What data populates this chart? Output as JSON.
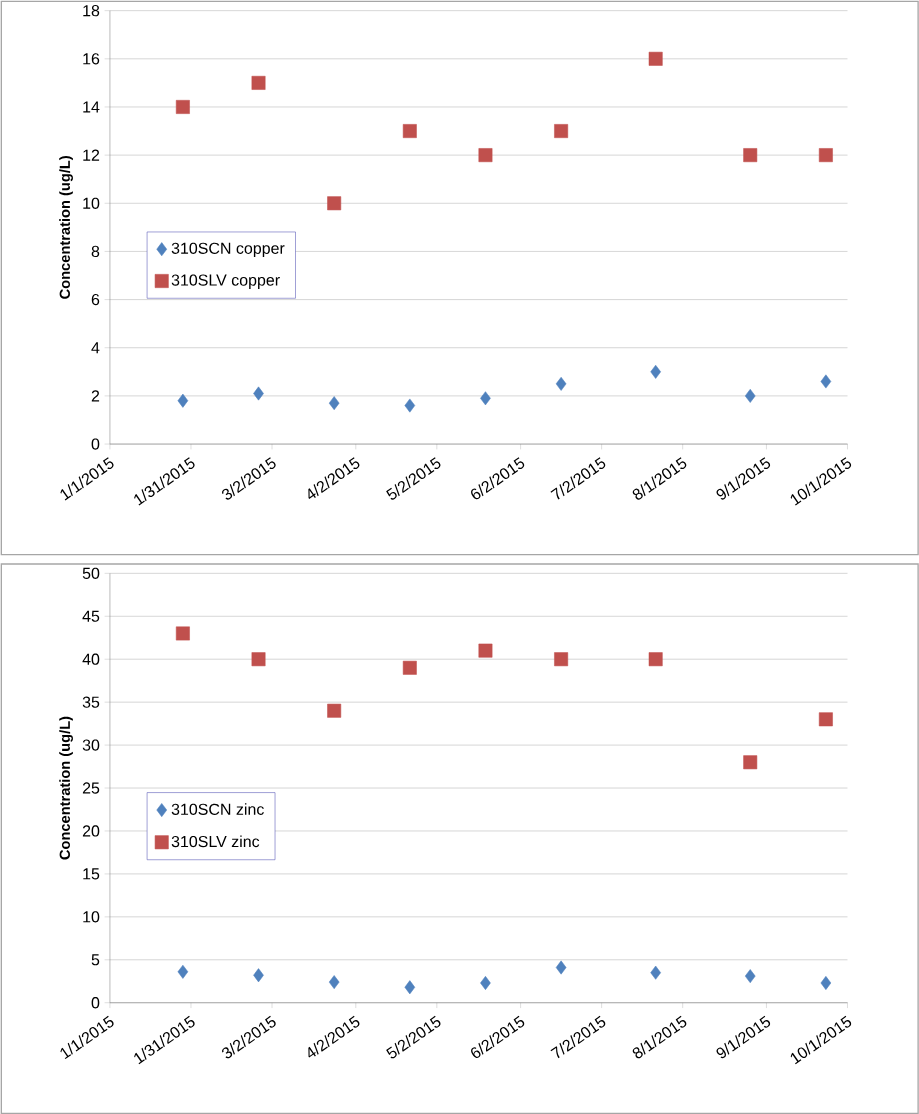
{
  "chart_data": [
    {
      "type": "scatter",
      "ylabel": "Concentration (ug/L)",
      "legend": "left",
      "grid": "y",
      "xlim": [
        "2015-01-01",
        "2015-10-01"
      ],
      "xticks": [
        {
          "value": "2015-01-01",
          "label": "1/1/2015"
        },
        {
          "value": "2015-01-31",
          "label": "1/31/2015"
        },
        {
          "value": "2015-03-02",
          "label": "3/2/2015"
        },
        {
          "value": "2015-04-02",
          "label": "4/2/2015"
        },
        {
          "value": "2015-05-02",
          "label": "5/2/2015"
        },
        {
          "value": "2015-06-02",
          "label": "6/2/2015"
        },
        {
          "value": "2015-07-02",
          "label": "7/2/2015"
        },
        {
          "value": "2015-08-01",
          "label": "8/1/2015"
        },
        {
          "value": "2015-09-01",
          "label": "9/1/2015"
        },
        {
          "value": "2015-10-01",
          "label": "10/1/2015"
        }
      ],
      "ylim": [
        0,
        18
      ],
      "yticks": [
        0,
        2,
        4,
        6,
        8,
        10,
        12,
        14,
        16,
        18
      ],
      "x": [
        "2015-01-28",
        "2015-02-25",
        "2015-03-25",
        "2015-04-22",
        "2015-05-20",
        "2015-06-17",
        "2015-07-22",
        "2015-08-26",
        "2015-09-23"
      ],
      "series": [
        {
          "name": "310SCN copper",
          "color": "#4f81bd",
          "marker": "diamond",
          "values": [
            1.8,
            2.1,
            1.7,
            1.6,
            1.9,
            2.5,
            3.0,
            2.0,
            2.6
          ]
        },
        {
          "name": "310SLV copper",
          "color": "#c0504d",
          "marker": "square",
          "values": [
            14,
            15,
            10,
            13,
            12,
            13,
            16,
            12,
            12
          ]
        }
      ]
    },
    {
      "type": "scatter",
      "ylabel": "Concentration (ug/L)",
      "legend": "left",
      "grid": "y",
      "xlim": [
        "2015-01-01",
        "2015-10-01"
      ],
      "xticks": [
        {
          "value": "2015-01-01",
          "label": "1/1/2015"
        },
        {
          "value": "2015-01-31",
          "label": "1/31/2015"
        },
        {
          "value": "2015-03-02",
          "label": "3/2/2015"
        },
        {
          "value": "2015-04-02",
          "label": "4/2/2015"
        },
        {
          "value": "2015-05-02",
          "label": "5/2/2015"
        },
        {
          "value": "2015-06-02",
          "label": "6/2/2015"
        },
        {
          "value": "2015-07-02",
          "label": "7/2/2015"
        },
        {
          "value": "2015-08-01",
          "label": "8/1/2015"
        },
        {
          "value": "2015-09-01",
          "label": "9/1/2015"
        },
        {
          "value": "2015-10-01",
          "label": "10/1/2015"
        }
      ],
      "ylim": [
        0,
        50
      ],
      "yticks": [
        0,
        5,
        10,
        15,
        20,
        25,
        30,
        35,
        40,
        45,
        50
      ],
      "x": [
        "2015-01-28",
        "2015-02-25",
        "2015-03-25",
        "2015-04-22",
        "2015-05-20",
        "2015-06-17",
        "2015-07-22",
        "2015-08-26",
        "2015-09-23"
      ],
      "series": [
        {
          "name": "310SCN zinc",
          "color": "#4f81bd",
          "marker": "diamond",
          "values": [
            3.6,
            3.2,
            2.4,
            1.8,
            2.3,
            4.1,
            3.5,
            3.1,
            2.3
          ]
        },
        {
          "name": "310SLV zinc",
          "color": "#c0504d",
          "marker": "square",
          "values": [
            43,
            40,
            34,
            39,
            41,
            40,
            40,
            28,
            33
          ]
        }
      ]
    }
  ]
}
